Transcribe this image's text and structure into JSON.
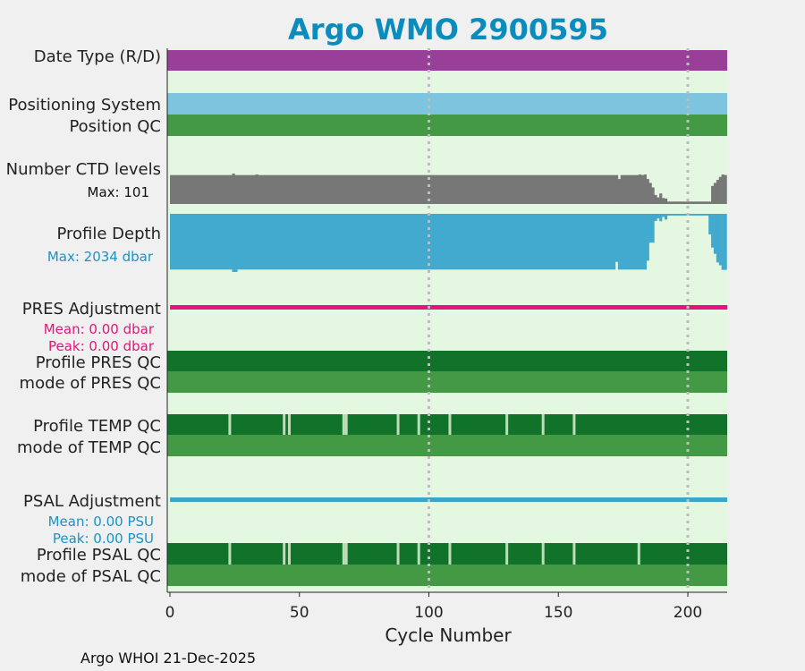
{
  "chart_data": {
    "type": "bar",
    "title": "Argo WMO 2900595",
    "xlabel": "Cycle Number",
    "xlim": [
      -1,
      215
    ],
    "xticks": [
      0,
      50,
      100,
      150,
      200
    ],
    "gridlines_x": [
      100,
      200
    ],
    "footer": "Argo WHOI 21-Dec-2025",
    "colors": {
      "background": "#e4f8e1",
      "date_type": "#993e99",
      "positioning": "#7dc4de",
      "qc_good": "#449944",
      "qc_dark": "#11722a",
      "ctd": "#777777",
      "depth": "#42a9cf",
      "pres_adj": "#e8137a",
      "psal_adj": "#3ba7c8",
      "title": "#0a8cbd",
      "sub_pres": "#e8137a",
      "sub_depth": "#1a93c4",
      "sub_psal": "#1a93c4"
    },
    "rows": {
      "date_type": {
        "label": "Date Type (R/D)"
      },
      "positioning": {
        "label": "Positioning System"
      },
      "position_qc": {
        "label": "Position QC"
      },
      "ctd_levels": {
        "label": "Number CTD levels",
        "note": "Max: 101",
        "max": 101
      },
      "profile_depth": {
        "label": "Profile Depth",
        "note": "Max: 2034 dbar",
        "max": 2034
      },
      "pres_adj": {
        "label": "PRES Adjustment",
        "mean": "Mean: 0.00 dbar",
        "peak": "Peak: 0.00 dbar"
      },
      "profile_pres_qc": {
        "label": "Profile PRES QC"
      },
      "mode_pres_qc": {
        "label": "mode of PRES QC"
      },
      "profile_temp_qc": {
        "label": "Profile TEMP QC",
        "gaps": [
          23,
          44,
          46,
          67,
          68,
          88,
          96,
          108,
          130,
          144,
          156
        ]
      },
      "mode_temp_qc": {
        "label": "mode of TEMP QC"
      },
      "psal_adj": {
        "label": "PSAL Adjustment",
        "mean": "Mean: 0.00 PSU",
        "peak": "Peak: 0.00 PSU"
      },
      "profile_psal_qc": {
        "label": "Profile PSAL QC",
        "gaps": [
          23,
          44,
          46,
          67,
          68,
          88,
          96,
          108,
          130,
          144,
          156,
          181
        ]
      },
      "mode_psal_qc": {
        "label": "mode of PSAL QC"
      }
    },
    "ctd_series": [
      {
        "from": 0,
        "to": 24,
        "value": 96
      },
      {
        "from": 24,
        "to": 25,
        "value": 101
      },
      {
        "from": 25,
        "to": 33,
        "value": 96
      },
      {
        "from": 33,
        "to": 34,
        "value": 98
      },
      {
        "from": 34,
        "to": 173,
        "value": 96
      },
      {
        "from": 173,
        "to": 174,
        "value": 83
      },
      {
        "from": 174,
        "to": 181,
        "value": 96
      },
      {
        "from": 181,
        "to": 182,
        "value": 98
      },
      {
        "from": 182,
        "to": 183,
        "value": 96
      },
      {
        "from": 183,
        "to": 184,
        "value": 98
      },
      {
        "from": 184,
        "to": 185,
        "value": 83
      },
      {
        "from": 185,
        "to": 186,
        "value": 70
      },
      {
        "from": 186,
        "to": 187,
        "value": 55
      },
      {
        "from": 187,
        "to": 188,
        "value": 30
      },
      {
        "from": 188,
        "to": 189,
        "value": 22
      },
      {
        "from": 189,
        "to": 190,
        "value": 35
      },
      {
        "from": 190,
        "to": 191,
        "value": 20
      },
      {
        "from": 191,
        "to": 192,
        "value": 18
      },
      {
        "from": 192,
        "to": 209,
        "value": 8
      },
      {
        "from": 209,
        "to": 210,
        "value": 60
      },
      {
        "from": 210,
        "to": 211,
        "value": 70
      },
      {
        "from": 211,
        "to": 212,
        "value": 80
      },
      {
        "from": 212,
        "to": 213,
        "value": 90
      },
      {
        "from": 213,
        "to": 214,
        "value": 98
      },
      {
        "from": 214,
        "to": 215,
        "value": 96
      }
    ],
    "depth_series": [
      {
        "from": 0,
        "to": 24,
        "value": 1950
      },
      {
        "from": 24,
        "to": 26,
        "value": 2034
      },
      {
        "from": 26,
        "to": 172,
        "value": 1950
      },
      {
        "from": 172,
        "to": 173,
        "value": 1680
      },
      {
        "from": 173,
        "to": 184,
        "value": 1950
      },
      {
        "from": 184,
        "to": 185,
        "value": 1640
      },
      {
        "from": 185,
        "to": 187,
        "value": 1010
      },
      {
        "from": 187,
        "to": 188,
        "value": 250
      },
      {
        "from": 188,
        "to": 189,
        "value": 160
      },
      {
        "from": 189,
        "to": 190,
        "value": 260
      },
      {
        "from": 190,
        "to": 191,
        "value": 110
      },
      {
        "from": 191,
        "to": 192,
        "value": 200
      },
      {
        "from": 192,
        "to": 208,
        "value": 60
      },
      {
        "from": 208,
        "to": 209,
        "value": 720
      },
      {
        "from": 209,
        "to": 210,
        "value": 1180
      },
      {
        "from": 210,
        "to": 211,
        "value": 1400
      },
      {
        "from": 211,
        "to": 212,
        "value": 1700
      },
      {
        "from": 212,
        "to": 213,
        "value": 1800
      },
      {
        "from": 213,
        "to": 215,
        "value": 1960
      }
    ]
  }
}
